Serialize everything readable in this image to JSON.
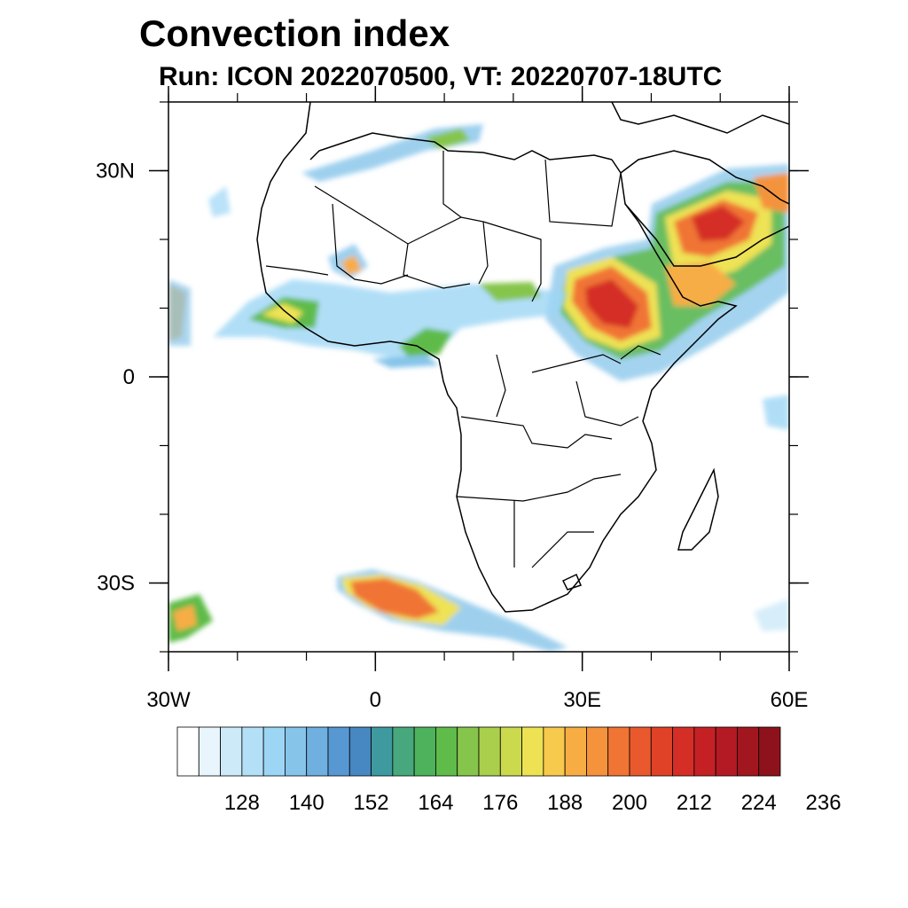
{
  "title": "Convection index",
  "subtitle": "Run: ICON 2022070500,  VT: 20220707-18UTC",
  "axes": {
    "lon_range": [
      -30,
      60
    ],
    "lat_range": [
      -40,
      40
    ],
    "lon_ticks": [
      {
        "value": -30,
        "label": "30W"
      },
      {
        "value": 0,
        "label": "0"
      },
      {
        "value": 30,
        "label": "30E"
      },
      {
        "value": 60,
        "label": "60E"
      }
    ],
    "lat_ticks": [
      {
        "value": 30,
        "label": "30N"
      },
      {
        "value": 0,
        "label": "0"
      },
      {
        "value": -30,
        "label": "30S"
      }
    ]
  },
  "colorbar": {
    "colors": [
      "#ffffff",
      "#e8f5fc",
      "#cceaf8",
      "#b4e0f7",
      "#9dd6f5",
      "#86c4ea",
      "#6fb0e0",
      "#5798d3",
      "#4787c2",
      "#3f9aa0",
      "#46a87c",
      "#4eb25c",
      "#5fbb4a",
      "#86c54b",
      "#aacf4c",
      "#cbd94c",
      "#eee254",
      "#f7c94c",
      "#f7ad44",
      "#f4933c",
      "#f07534",
      "#e9592d",
      "#e04228",
      "#d42e26",
      "#c52125",
      "#b31a23",
      "#a2161f",
      "#8e121b"
    ],
    "labels": [
      "128",
      "140",
      "152",
      "164",
      "176",
      "188",
      "200",
      "212",
      "224",
      "236"
    ]
  }
}
